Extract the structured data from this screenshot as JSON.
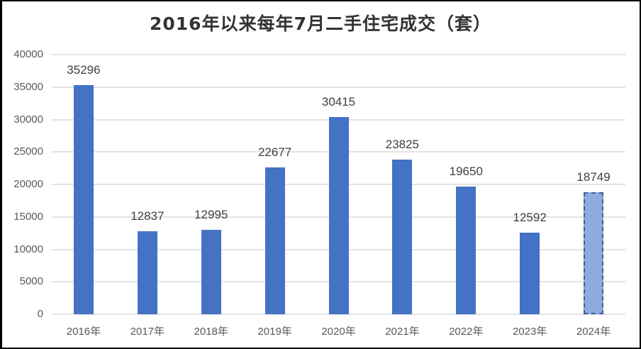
{
  "chart_data": {
    "type": "bar",
    "title": "2016年以来每年7月二手住宅成交（套）",
    "xlabel": "",
    "ylabel": "",
    "categories": [
      "2016年",
      "2017年",
      "2018年",
      "2019年",
      "2020年",
      "2021年",
      "2022年",
      "2023年",
      "2024年"
    ],
    "values": [
      35296,
      12837,
      12995,
      22677,
      30415,
      23825,
      19650,
      12592,
      18749
    ],
    "value_labels": [
      "35296",
      "12837",
      "12995",
      "22677",
      "30415",
      "23825",
      "19650",
      "12592",
      "18749"
    ],
    "ylim": [
      0,
      40000
    ],
    "yticks": [
      0,
      5000,
      10000,
      15000,
      20000,
      25000,
      30000,
      35000,
      40000
    ],
    "ytick_labels": [
      "0",
      "5000",
      "10000",
      "15000",
      "20000",
      "25000",
      "30000",
      "35000",
      "40000"
    ],
    "grid": true,
    "legend": null,
    "bar_color": "#4472C4",
    "highlight": {
      "category": "2024年",
      "color": "#8FAADC",
      "border": "dashed"
    }
  }
}
